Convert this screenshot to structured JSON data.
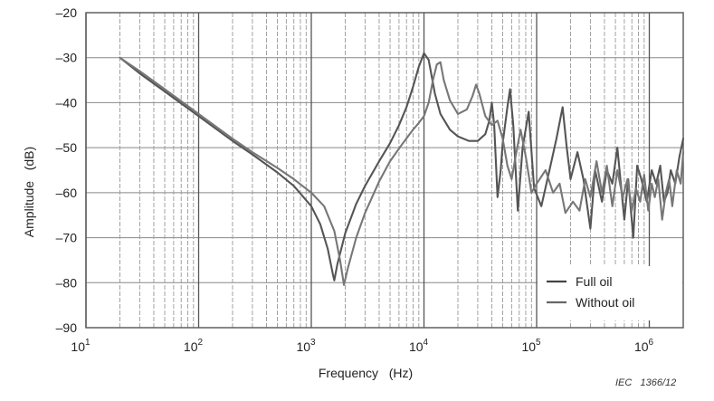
{
  "chart_data": {
    "type": "line",
    "xlabel": "Frequency   (Hz)",
    "ylabel": "Amplitude   (dB)",
    "x_scale": "log",
    "xlim": [
      10,
      2000000
    ],
    "ylim": [
      -90,
      -20
    ],
    "grid": true,
    "legend_position": "bottom-right",
    "x_ticks": [
      {
        "base": "10",
        "exp": "1"
      },
      {
        "base": "10",
        "exp": "2"
      },
      {
        "base": "10",
        "exp": "3"
      },
      {
        "base": "10",
        "exp": "4"
      },
      {
        "base": "10",
        "exp": "5"
      },
      {
        "base": "10",
        "exp": "6"
      }
    ],
    "x_tick_values": [
      10,
      100,
      1000,
      10000,
      100000,
      1000000
    ],
    "y_ticks": [
      "–20",
      "–30",
      "–40",
      "–50",
      "–60",
      "–70",
      "–80",
      "–90"
    ],
    "y_tick_values": [
      -20,
      -30,
      -40,
      -50,
      -60,
      -70,
      -80,
      -90
    ],
    "series": [
      {
        "name": "Full oil",
        "color": "#555555",
        "points": [
          [
            20,
            -30
          ],
          [
            30,
            -33.5
          ],
          [
            50,
            -37.5
          ],
          [
            100,
            -43
          ],
          [
            200,
            -48.5
          ],
          [
            300,
            -51.5
          ],
          [
            500,
            -55.5
          ],
          [
            700,
            -58.5
          ],
          [
            1000,
            -63
          ],
          [
            1200,
            -67
          ],
          [
            1400,
            -72.5
          ],
          [
            1550,
            -78
          ],
          [
            1600,
            -79.5
          ],
          [
            1700,
            -76
          ],
          [
            2000,
            -69
          ],
          [
            2500,
            -62.5
          ],
          [
            3000,
            -58.5
          ],
          [
            4000,
            -53
          ],
          [
            5000,
            -49
          ],
          [
            6000,
            -45
          ],
          [
            7000,
            -41
          ],
          [
            8000,
            -36.5
          ],
          [
            9000,
            -32
          ],
          [
            10000,
            -29
          ],
          [
            11000,
            -30.5
          ],
          [
            12500,
            -38
          ],
          [
            14000,
            -42.5
          ],
          [
            17000,
            -46
          ],
          [
            20000,
            -47.5
          ],
          [
            25000,
            -48.5
          ],
          [
            30000,
            -48.5
          ],
          [
            35000,
            -47
          ],
          [
            38000,
            -44
          ],
          [
            40000,
            -40
          ],
          [
            42000,
            -45
          ],
          [
            45000,
            -61
          ],
          [
            48000,
            -55
          ],
          [
            50000,
            -49
          ],
          [
            55000,
            -41
          ],
          [
            58000,
            -37
          ],
          [
            62000,
            -45
          ],
          [
            68000,
            -64
          ],
          [
            75000,
            -50
          ],
          [
            85000,
            -42
          ],
          [
            95000,
            -59
          ],
          [
            110000,
            -63
          ],
          [
            130000,
            -55
          ],
          [
            150000,
            -48
          ],
          [
            170000,
            -41
          ],
          [
            185000,
            -50
          ],
          [
            200000,
            -57
          ],
          [
            230000,
            -51
          ],
          [
            260000,
            -57
          ],
          [
            300000,
            -68
          ],
          [
            330000,
            -55
          ],
          [
            380000,
            -62
          ],
          [
            420000,
            -55
          ],
          [
            470000,
            -58
          ],
          [
            520000,
            -50
          ],
          [
            600000,
            -66
          ],
          [
            650000,
            -57
          ],
          [
            720000,
            -70
          ],
          [
            780000,
            -54
          ],
          [
            850000,
            -57
          ],
          [
            950000,
            -62
          ],
          [
            1050000,
            -55
          ],
          [
            1150000,
            -58
          ],
          [
            1250000,
            -54
          ],
          [
            1350000,
            -62
          ],
          [
            1450000,
            -60
          ],
          [
            1550000,
            -55
          ],
          [
            1700000,
            -58
          ],
          [
            1850000,
            -52
          ],
          [
            2000000,
            -48
          ]
        ]
      },
      {
        "name": "Without oil",
        "color": "#777777",
        "points": [
          [
            20,
            -30
          ],
          [
            30,
            -33
          ],
          [
            50,
            -37
          ],
          [
            100,
            -42.5
          ],
          [
            200,
            -48
          ],
          [
            300,
            -51
          ],
          [
            500,
            -54.5
          ],
          [
            700,
            -57
          ],
          [
            1000,
            -60
          ],
          [
            1300,
            -63
          ],
          [
            1600,
            -68.5
          ],
          [
            1800,
            -75
          ],
          [
            1950,
            -80.5
          ],
          [
            2100,
            -77
          ],
          [
            2500,
            -70
          ],
          [
            3000,
            -64.5
          ],
          [
            4000,
            -57.5
          ],
          [
            5000,
            -53
          ],
          [
            6500,
            -49
          ],
          [
            8000,
            -46
          ],
          [
            9000,
            -44.5
          ],
          [
            10000,
            -43
          ],
          [
            11000,
            -40
          ],
          [
            12000,
            -35
          ],
          [
            13000,
            -31.5
          ],
          [
            14000,
            -31
          ],
          [
            15000,
            -35
          ],
          [
            17000,
            -39.5
          ],
          [
            20000,
            -42.5
          ],
          [
            24000,
            -41.5
          ],
          [
            27000,
            -38.5
          ],
          [
            29000,
            -36
          ],
          [
            31000,
            -38
          ],
          [
            35000,
            -43
          ],
          [
            40000,
            -45
          ],
          [
            45000,
            -44
          ],
          [
            50000,
            -48
          ],
          [
            55000,
            -54
          ],
          [
            60000,
            -57
          ],
          [
            65000,
            -52
          ],
          [
            72000,
            -46
          ],
          [
            80000,
            -52
          ],
          [
            90000,
            -60
          ],
          [
            100000,
            -58
          ],
          [
            120000,
            -55
          ],
          [
            140000,
            -60
          ],
          [
            160000,
            -58
          ],
          [
            180000,
            -64.5
          ],
          [
            210000,
            -62
          ],
          [
            240000,
            -64
          ],
          [
            270000,
            -57
          ],
          [
            300000,
            -61
          ],
          [
            340000,
            -53
          ],
          [
            380000,
            -60
          ],
          [
            420000,
            -54
          ],
          [
            470000,
            -63
          ],
          [
            520000,
            -55
          ],
          [
            580000,
            -61
          ],
          [
            640000,
            -57
          ],
          [
            700000,
            -64
          ],
          [
            760000,
            -59
          ],
          [
            830000,
            -62
          ],
          [
            900000,
            -56
          ],
          [
            980000,
            -64
          ],
          [
            1050000,
            -58
          ],
          [
            1120000,
            -61
          ],
          [
            1200000,
            -57
          ],
          [
            1300000,
            -66
          ],
          [
            1400000,
            -60
          ],
          [
            1500000,
            -57
          ],
          [
            1600000,
            -63
          ],
          [
            1750000,
            -55
          ],
          [
            1900000,
            -58
          ],
          [
            2000000,
            -51
          ]
        ]
      }
    ]
  },
  "legend": {
    "items": [
      {
        "label": "Full oil",
        "color": "#444444"
      },
      {
        "label": "Without oil",
        "color": "#666666"
      }
    ]
  },
  "credit": "IEC   1366/12"
}
